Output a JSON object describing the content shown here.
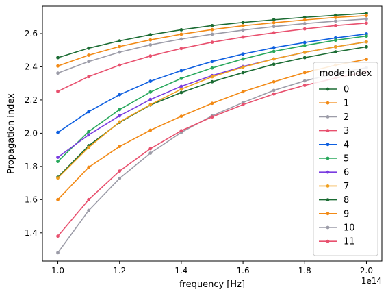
{
  "chart_data": {
    "type": "line",
    "xlabel": "frequency [Hz]",
    "ylabel": "Propagation index",
    "x_offset_label": "1e14",
    "x_ticks": [
      "1.0",
      "1.2",
      "1.4",
      "1.6",
      "1.8",
      "2.0"
    ],
    "y_ticks": [
      "1.4",
      "1.6",
      "1.8",
      "2.0",
      "2.2",
      "2.4",
      "2.6"
    ],
    "xlim": [
      95000000000000.0,
      205000000000000.0
    ],
    "ylim": [
      1.23,
      2.765
    ],
    "legend": {
      "title": "mode index",
      "position": "lower right"
    },
    "x": [
      100000000000000.0,
      110000000000000.0,
      120000000000000.0,
      130000000000000.0,
      140000000000000.0,
      150000000000000.0,
      160000000000000.0,
      170000000000000.0,
      180000000000000.0,
      190000000000000.0,
      200000000000000.0
    ],
    "series": [
      {
        "name": "0",
        "color": "#1a6b32",
        "values": [
          1.735,
          1.925,
          2.065,
          2.17,
          2.245,
          2.31,
          2.365,
          2.415,
          2.455,
          2.49,
          2.52
        ]
      },
      {
        "name": "1",
        "color": "#f28a16",
        "values": [
          1.6,
          1.795,
          1.92,
          2.018,
          2.102,
          2.18,
          2.25,
          2.31,
          2.365,
          2.41,
          2.445
        ]
      },
      {
        "name": "2",
        "color": "#9c9ca8",
        "values": [
          1.28,
          1.535,
          1.728,
          1.88,
          2.005,
          2.105,
          2.185,
          2.258,
          2.315,
          2.36,
          2.395
        ]
      },
      {
        "name": "3",
        "color": "#e8506e",
        "values": [
          1.38,
          1.6,
          1.772,
          1.907,
          2.015,
          2.098,
          2.172,
          2.236,
          2.288,
          2.332,
          2.37
        ]
      },
      {
        "name": "4",
        "color": "#0e5fe0",
        "values": [
          2.005,
          2.13,
          2.232,
          2.313,
          2.377,
          2.432,
          2.477,
          2.515,
          2.546,
          2.574,
          2.598
        ]
      },
      {
        "name": "5",
        "color": "#28a85c",
        "values": [
          1.83,
          2.01,
          2.142,
          2.248,
          2.33,
          2.393,
          2.447,
          2.493,
          2.528,
          2.56,
          2.585
        ]
      },
      {
        "name": "6",
        "color": "#7a3ce0",
        "values": [
          1.855,
          1.99,
          2.105,
          2.203,
          2.282,
          2.347,
          2.402,
          2.447,
          2.487,
          2.52,
          2.55
        ]
      },
      {
        "name": "7",
        "color": "#f0a020",
        "values": [
          1.73,
          1.915,
          2.068,
          2.172,
          2.265,
          2.34,
          2.398,
          2.447,
          2.487,
          2.52,
          2.55
        ]
      },
      {
        "name": "8",
        "color": "#1a6b32",
        "values": [
          2.455,
          2.512,
          2.556,
          2.593,
          2.623,
          2.648,
          2.667,
          2.683,
          2.698,
          2.71,
          2.722
        ]
      },
      {
        "name": "9",
        "color": "#f28a16",
        "values": [
          2.405,
          2.47,
          2.522,
          2.562,
          2.596,
          2.624,
          2.647,
          2.665,
          2.682,
          2.697,
          2.708
        ]
      },
      {
        "name": "10",
        "color": "#9c9ca8",
        "values": [
          2.362,
          2.432,
          2.488,
          2.532,
          2.567,
          2.596,
          2.621,
          2.642,
          2.66,
          2.675,
          2.688
        ]
      },
      {
        "name": "11",
        "color": "#e8506e",
        "values": [
          2.252,
          2.341,
          2.41,
          2.465,
          2.51,
          2.548,
          2.579,
          2.605,
          2.628,
          2.648,
          2.663
        ]
      }
    ]
  }
}
